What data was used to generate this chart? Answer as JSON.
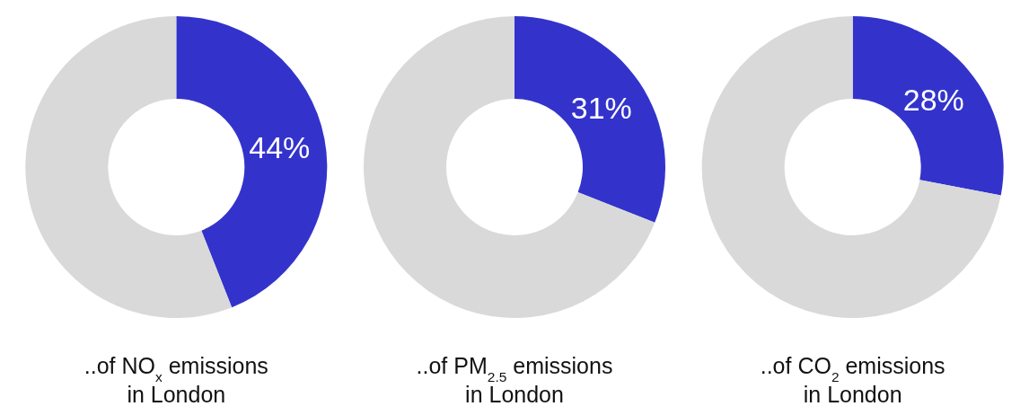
{
  "chart_data": [
    {
      "type": "donut",
      "title": "..of NO$_{x}$ emissions\nin London",
      "categories": [
        null,
        null
      ],
      "values": [
        44,
        56
      ],
      "colors": [
        "#3333cc",
        "#d9d9d9"
      ],
      "value_labels": [
        "44%",
        null
      ]
    },
    {
      "type": "donut",
      "title": "..of PM$_{2.5}$ emissions\nin London",
      "categories": [
        null,
        null
      ],
      "values": [
        31,
        69
      ],
      "colors": [
        "#3333cc",
        "#d9d9d9"
      ],
      "value_labels": [
        "31%",
        null
      ]
    },
    {
      "type": "donut",
      "title": "..of CO$_{2}$ emissions\nin London",
      "categories": [
        null,
        null
      ],
      "values": [
        28,
        72
      ],
      "colors": [
        "#3333cc",
        "#d9d9d9"
      ],
      "value_labels": [
        "28%",
        null
      ]
    }
  ]
}
